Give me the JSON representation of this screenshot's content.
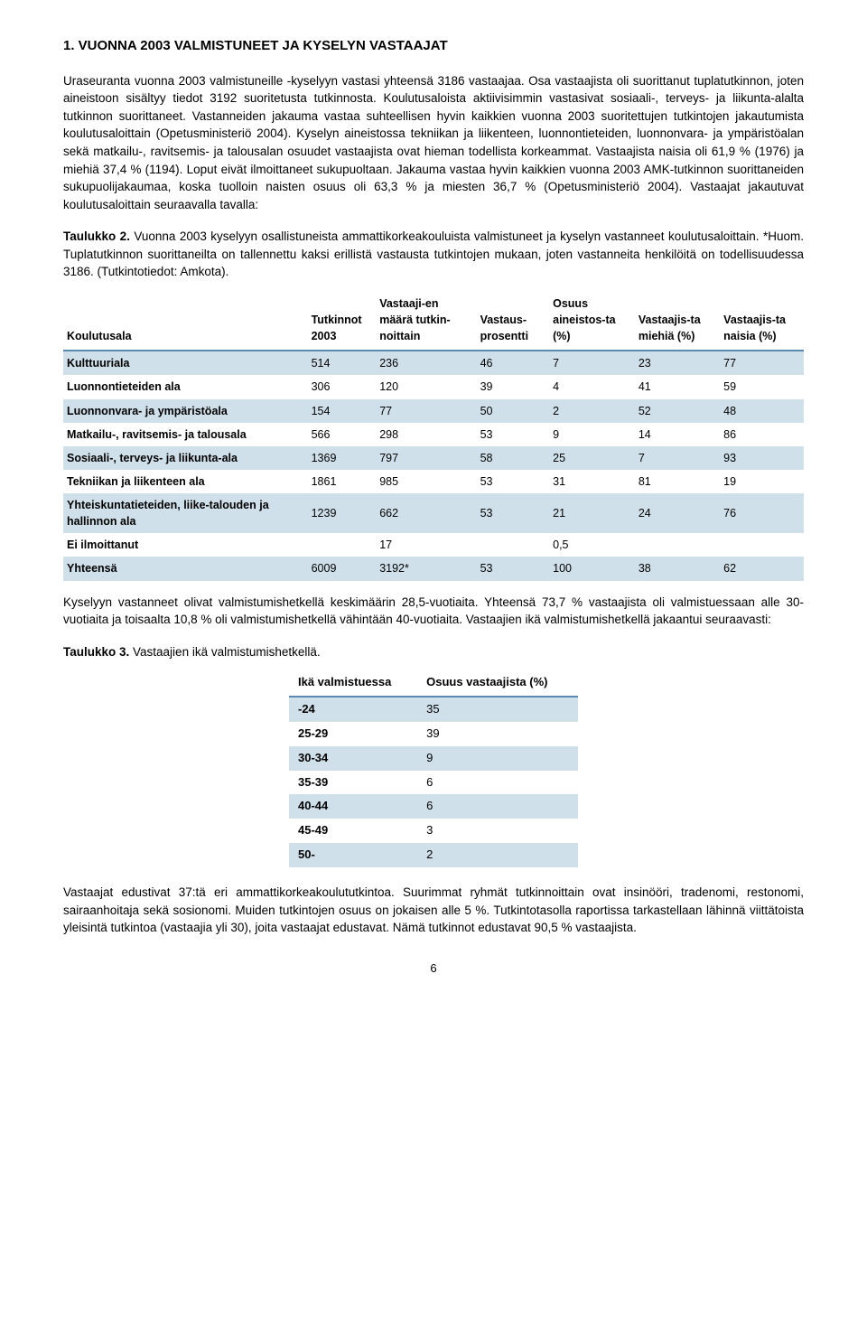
{
  "heading": "1.  VUONNA 2003 VALMISTUNEET JA KYSELYN VASTAAJAT",
  "para1": "Uraseuranta vuonna 2003 valmistuneille -kyselyyn vastasi yhteensä 3186 vastaajaa. Osa vastaajista oli suorittanut tuplatutkinnon, joten aineistoon sisältyy tiedot 3192 suoritetusta tutkinnosta. Koulutusaloista aktiivisimmin vastasivat sosiaali-, terveys- ja liikunta-alalta tutkinnon suorittaneet. Vastanneiden jakauma vastaa suhteellisen hyvin kaikkien vuonna 2003 suoritettujen tutkintojen jakautumista koulutusaloittain (Opetusministeriö 2004). Kyselyn aineistossa tekniikan ja liikenteen, luonnontieteiden, luonnonvara- ja ympäristöalan sekä matkailu-, ravitsemis- ja talousalan osuudet vastaajista ovat hieman todellista korkeammat. Vastaajista naisia oli 61,9 % (1976) ja miehiä 37,4 % (1194). Loput eivät ilmoittaneet sukupuoltaan. Jakauma vastaa hyvin kaikkien vuonna 2003 AMK-tutkinnon suorittaneiden sukupuolijakaumaa, koska tuolloin naisten osuus oli 63,3 % ja miesten 36,7 % (Opetusministeriö 2004). Vastaajat jakautuvat koulutusaloittain seuraavalla tavalla:",
  "caption1_bold": "Taulukko 2.",
  "caption1_rest": " Vuonna 2003 kyselyyn osallistuneista ammattikorkeakouluista valmistuneet ja kyselyn vastanneet koulutusaloittain. *Huom. Tuplatutkinnon suorittaneilta on tallennettu kaksi erillistä vastausta tutkintojen mukaan, joten vastanneita henkilöitä on todellisuudessa 3186. (Tutkintotiedot: Amkota).",
  "table1": {
    "headers": [
      "Koulutusala",
      "Tutkinnot 2003",
      "Vastaaji-en määrä tutkin-noittain",
      "Vastaus-prosentti",
      "Osuus aineistos-ta (%)",
      "Vastaajis-ta miehiä (%)",
      "Vastaajis-ta naisia (%)"
    ],
    "rows": [
      {
        "label": "Kulttuuriala",
        "c": [
          514,
          236,
          46,
          7,
          23,
          77
        ],
        "band": true
      },
      {
        "label": "Luonnontieteiden ala",
        "c": [
          306,
          120,
          39,
          4,
          41,
          59
        ],
        "band": false
      },
      {
        "label": "Luonnonvara- ja ympäristöala",
        "c": [
          154,
          77,
          50,
          2,
          52,
          48
        ],
        "band": true
      },
      {
        "label": "Matkailu-, ravitsemis- ja talousala",
        "c": [
          566,
          298,
          53,
          9,
          14,
          86
        ],
        "band": false
      },
      {
        "label": "Sosiaali-, terveys- ja liikunta-ala",
        "c": [
          1369,
          797,
          58,
          25,
          7,
          93
        ],
        "band": true
      },
      {
        "label": "Tekniikan ja liikenteen ala",
        "c": [
          1861,
          985,
          53,
          31,
          81,
          19
        ],
        "band": false
      },
      {
        "label": "Yhteiskuntatieteiden, liike-talouden ja hallinnon ala",
        "c": [
          1239,
          662,
          53,
          21,
          24,
          76
        ],
        "band": true
      },
      {
        "label": "Ei ilmoittanut",
        "c": [
          "",
          17,
          "",
          "0,5",
          "",
          ""
        ],
        "band": false
      },
      {
        "label": "Yhteensä",
        "c": [
          6009,
          "3192*",
          53,
          100,
          38,
          62
        ],
        "band": true
      }
    ]
  },
  "para2": "Kyselyyn vastanneet olivat valmistumishetkellä keskimäärin 28,5-vuotiaita. Yhteensä 73,7 % vastaajista oli valmistuessaan alle 30-vuotiaita ja toisaalta 10,8 % oli valmistumishetkellä vähintään 40-vuotiaita. Vastaajien ikä valmistumishetkellä jakaantui seuraavasti:",
  "caption2_bold": "Taulukko 3.",
  "caption2_rest": " Vastaajien ikä valmistumishetkellä.",
  "table2": {
    "headers": [
      "Ikä valmistuessa",
      "Osuus vastaajista (%)"
    ],
    "rows": [
      {
        "label": "-24",
        "v": 35,
        "band": true
      },
      {
        "label": "25-29",
        "v": 39,
        "band": false
      },
      {
        "label": "30-34",
        "v": 9,
        "band": true
      },
      {
        "label": "35-39",
        "v": 6,
        "band": false
      },
      {
        "label": "40-44",
        "v": 6,
        "band": true
      },
      {
        "label": "45-49",
        "v": 3,
        "band": false
      },
      {
        "label": "50-",
        "v": 2,
        "band": true
      }
    ]
  },
  "para3": "Vastaajat edustivat 37:tä eri ammattikorkeakoulututkintoa. Suurimmat ryhmät tutkinnoittain ovat insinööri, tradenomi, restonomi, sairaanhoitaja sekä sosionomi. Muiden tutkintojen osuus on jokaisen alle 5 %.  Tutkintotasolla raportissa tarkastellaan lähinnä viittätoista yleisintä tutkintoa (vastaajia yli 30), joita vastaajat edustavat. Nämä tutkinnot edustavat 90,5 % vastaajista.",
  "pageNumber": "6"
}
